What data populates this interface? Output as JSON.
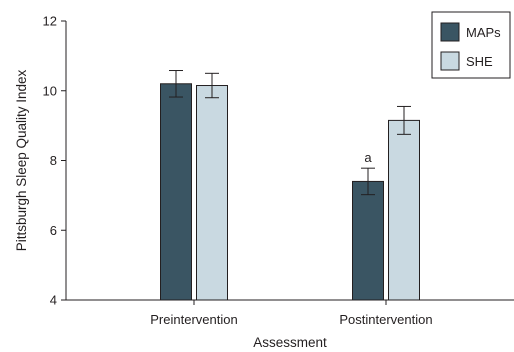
{
  "chart_data": {
    "type": "bar",
    "categories": [
      "Preintervention",
      "Postintervention"
    ],
    "series": [
      {
        "name": "MAPs",
        "color": "#3a5563",
        "values": [
          10.2,
          7.4
        ],
        "errors": [
          0.38,
          0.38
        ]
      },
      {
        "name": "SHE",
        "color": "#c9d9e1",
        "values": [
          10.15,
          9.15
        ],
        "errors": [
          0.35,
          0.4
        ]
      }
    ],
    "xlabel": "Assessment",
    "ylabel": "Pittsburgh Sleep Quality Index",
    "ylim": [
      4,
      12
    ],
    "yticks": [
      "4",
      "6",
      "8",
      "10",
      "12"
    ],
    "annotations": [
      {
        "category": "Postintervention",
        "series": "MAPs",
        "text": "a"
      }
    ],
    "legend": "top-right",
    "grid": false
  }
}
